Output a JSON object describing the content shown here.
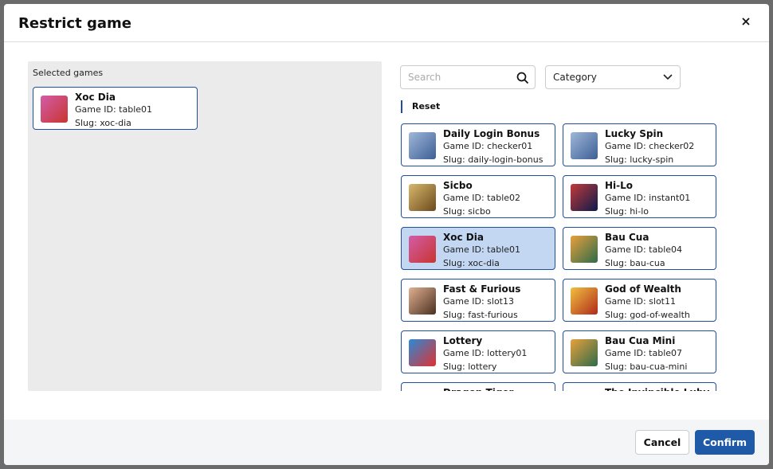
{
  "header": {
    "title": "Restrict game"
  },
  "selected": {
    "label": "Selected games",
    "games": [
      {
        "name": "Xoc Dia",
        "game_id": "Game ID: table01",
        "slug": "Slug: xoc-dia"
      }
    ]
  },
  "filters": {
    "search_placeholder": "Search",
    "category": "Category",
    "reset": "Reset"
  },
  "games": [
    {
      "name": "Daily Login Bonus",
      "game_id": "Game ID: checker01",
      "slug": "Slug: daily-login-bonus"
    },
    {
      "name": "Lucky Spin",
      "game_id": "Game ID: checker02",
      "slug": "Slug: lucky-spin"
    },
    {
      "name": "Sicbo",
      "game_id": "Game ID: table02",
      "slug": "Slug: sicbo"
    },
    {
      "name": "Hi-Lo",
      "game_id": "Game ID: instant01",
      "slug": "Slug: hi-lo"
    },
    {
      "name": "Xoc Dia",
      "game_id": "Game ID: table01",
      "slug": "Slug: xoc-dia",
      "selected": true
    },
    {
      "name": "Bau Cua",
      "game_id": "Game ID: table04",
      "slug": "Slug: bau-cua"
    },
    {
      "name": "Fast & Furious",
      "game_id": "Game ID: slot13",
      "slug": "Slug: fast-furious"
    },
    {
      "name": "God of Wealth",
      "game_id": "Game ID: slot11",
      "slug": "Slug: god-of-wealth"
    },
    {
      "name": "Lottery",
      "game_id": "Game ID: lottery01",
      "slug": "Slug: lottery"
    },
    {
      "name": "Bau Cua Mini",
      "game_id": "Game ID: table07",
      "slug": "Slug: bau-cua-mini"
    },
    {
      "name": "Dragon Tiger"
    },
    {
      "name": "The Invincible Luby"
    }
  ],
  "footer": {
    "cancel": "Cancel",
    "confirm": "Confirm"
  }
}
